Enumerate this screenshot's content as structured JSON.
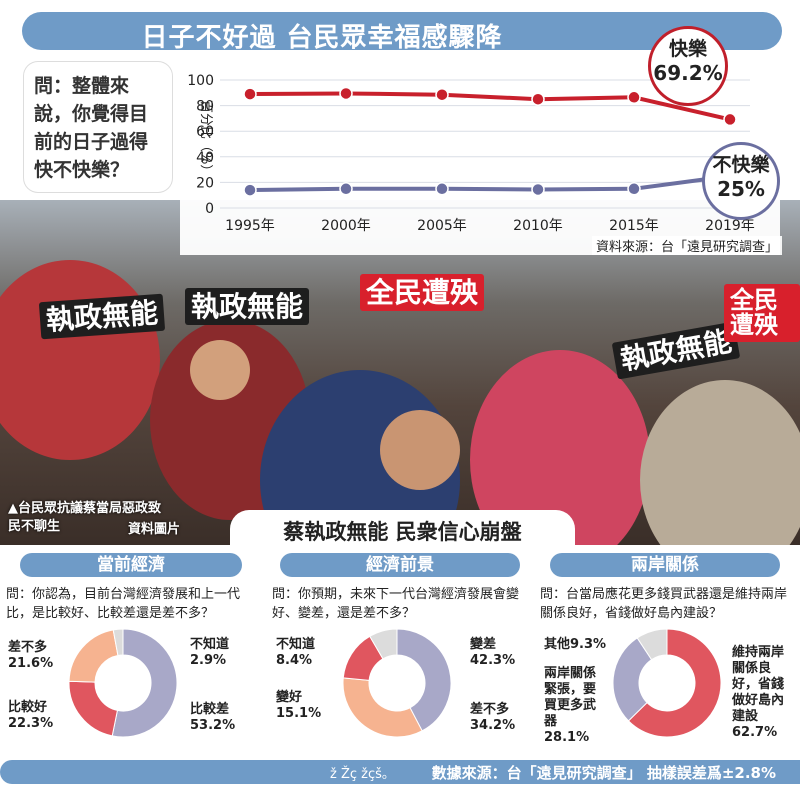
{
  "title": "日子不好過 台民眾幸福感驟降",
  "question_main": "問：整體來說，你覺得目前的日子過得快不快樂？",
  "photo_caption_line1": "▲台民眾抗議蔡當局惡政致",
  "photo_caption_line2": "民不聊生",
  "photo_credit": "資料圖片",
  "photo_headline": "蔡執政無能 民衆信心崩盤",
  "signs": [
    "執政無能",
    "執政無能",
    "全民遭殃",
    "執政無能",
    "全民遭殃"
  ],
  "source_top": "資料來源：台「遠見研究調查」",
  "callout_happy": {
    "label": "快樂",
    "value": "69.2%"
  },
  "callout_unhappy": {
    "label": "不快樂",
    "value": "25%"
  },
  "chart_data": [
    {
      "type": "line",
      "ylabel": "百分比（%）",
      "x": [
        "1995年",
        "2000年",
        "2005年",
        "2010年",
        "2015年",
        "2019年"
      ],
      "yticks": [
        0,
        20,
        40,
        60,
        80,
        100
      ],
      "ylim": [
        0,
        100
      ],
      "series": [
        {
          "name": "快樂",
          "color": "#c8202c",
          "values": [
            89,
            89.5,
            88.5,
            85,
            86.5,
            69.2
          ]
        },
        {
          "name": "不快樂",
          "color": "#6b6fa0",
          "values": [
            14,
            15,
            15,
            14.5,
            15,
            25
          ]
        }
      ]
    },
    {
      "type": "pie",
      "title": "當前經濟",
      "question": "問：你認為，目前台灣經濟發展和上一代比，是比較好、比較差還是差不多？",
      "slices": [
        {
          "label": "比較差",
          "value": 53.2,
          "color": "#a8a8c8"
        },
        {
          "label": "比較好",
          "value": 22.3,
          "color": "#e0565f"
        },
        {
          "label": "差不多",
          "value": 21.6,
          "color": "#f6b390"
        },
        {
          "label": "不知道",
          "value": 2.9,
          "color": "#dcdcdc"
        }
      ]
    },
    {
      "type": "pie",
      "title": "經濟前景",
      "question": "問：你預期，未來下一代台灣經濟發展會變好、變差，還是差不多？",
      "slices": [
        {
          "label": "變差",
          "value": 42.3,
          "color": "#a8a8c8"
        },
        {
          "label": "差不多",
          "value": 34.2,
          "color": "#f6b390"
        },
        {
          "label": "變好",
          "value": 15.1,
          "color": "#e0565f"
        },
        {
          "label": "不知道",
          "value": 8.4,
          "color": "#dcdcdc"
        }
      ]
    },
    {
      "type": "pie",
      "title": "兩岸關係",
      "question": "問：台當局應花更多錢買武器還是維持兩岸關係良好，省錢做好島內建設？",
      "slices": [
        {
          "label": "維持兩岸關係良好，省錢做好島內建設",
          "value": 62.7,
          "color": "#e0565f"
        },
        {
          "label": "兩岸關係緊張，要買更多武器",
          "value": 28.1,
          "color": "#a8a8c8"
        },
        {
          "label": "其他",
          "value": 9.3,
          "color": "#dcdcdc"
        }
      ]
    }
  ],
  "pie_labels": {
    "p1": {
      "cha": "比較差",
      "cha_v": "53.2%",
      "hao": "比較好",
      "hao_v": "22.3%",
      "chabuduo": "差不多",
      "chabuduo_v": "21.6%",
      "buzhidao": "不知道",
      "buzhidao_v": "2.9%"
    },
    "p2": {
      "biancha": "變差",
      "biancha_v": "42.3%",
      "chabuduo": "差不多",
      "chabuduo_v": "34.2%",
      "bianhao": "變好",
      "bianhao_v": "15.1%",
      "buzhidao": "不知道",
      "buzhidao_v": "8.4%"
    },
    "p3": {
      "weichi": "維持兩岸關係良好，省錢做好島內建設",
      "weichi_v": "62.7%",
      "jinzhang": "兩岸關係緊張，要買更多武器",
      "jinzhang_v": "28.1%",
      "qita": "其他",
      "qita_v": "9.3%"
    }
  },
  "footer_source": "數據來源：台「遠見研究調查」 抽樣誤差爲±2.8%",
  "footer_mark": "ž Žç žçš。"
}
